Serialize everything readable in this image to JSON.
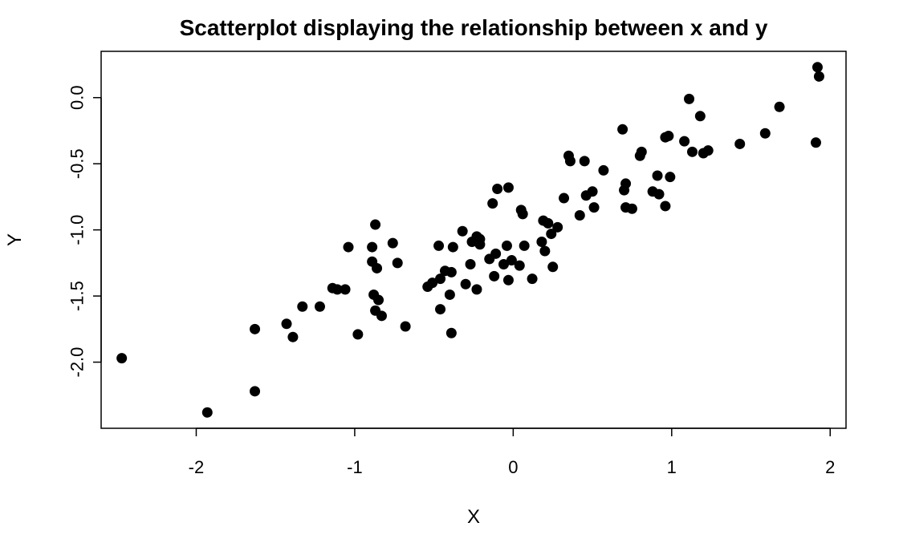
{
  "chart_data": {
    "type": "scatter",
    "title": "Scatterplot displaying the relationship between x and y",
    "xlabel": "X",
    "ylabel": "Y",
    "xlim": [
      -2.6,
      2.1
    ],
    "ylim": [
      -2.5,
      0.35
    ],
    "x_ticks": [
      -2,
      -1,
      0,
      1,
      2
    ],
    "x_tick_labels": [
      "-2",
      "-1",
      "0",
      "1",
      "2"
    ],
    "y_ticks": [
      -2.0,
      -1.5,
      -1.0,
      -0.5,
      0.0
    ],
    "y_tick_labels": [
      "-2.0",
      "-1.5",
      "-1.0",
      "-0.5",
      "0.0"
    ],
    "grid": false,
    "marker_color": "#000000",
    "points": [
      [
        -2.47,
        -1.97
      ],
      [
        -1.93,
        -2.38
      ],
      [
        -1.63,
        -2.22
      ],
      [
        -1.63,
        -1.75
      ],
      [
        -1.43,
        -1.71
      ],
      [
        -1.39,
        -1.81
      ],
      [
        -1.33,
        -1.58
      ],
      [
        -1.22,
        -1.58
      ],
      [
        -1.14,
        -1.44
      ],
      [
        -1.11,
        -1.45
      ],
      [
        -1.06,
        -1.45
      ],
      [
        -1.04,
        -1.13
      ],
      [
        -0.98,
        -1.79
      ],
      [
        -0.89,
        -1.13
      ],
      [
        -0.89,
        -1.24
      ],
      [
        -0.88,
        -1.49
      ],
      [
        -0.87,
        -0.96
      ],
      [
        -0.87,
        -1.61
      ],
      [
        -0.86,
        -1.29
      ],
      [
        -0.85,
        -1.53
      ],
      [
        -0.83,
        -1.65
      ],
      [
        -0.76,
        -1.1
      ],
      [
        -0.73,
        -1.25
      ],
      [
        -0.68,
        -1.73
      ],
      [
        -0.54,
        -1.43
      ],
      [
        -0.51,
        -1.4
      ],
      [
        -0.47,
        -1.12
      ],
      [
        -0.46,
        -1.37
      ],
      [
        -0.46,
        -1.6
      ],
      [
        -0.43,
        -1.31
      ],
      [
        -0.4,
        -1.49
      ],
      [
        -0.39,
        -1.32
      ],
      [
        -0.39,
        -1.78
      ],
      [
        -0.38,
        -1.13
      ],
      [
        -0.32,
        -1.01
      ],
      [
        -0.3,
        -1.41
      ],
      [
        -0.27,
        -1.26
      ],
      [
        -0.26,
        -1.09
      ],
      [
        -0.23,
        -1.05
      ],
      [
        -0.23,
        -1.45
      ],
      [
        -0.21,
        -1.07
      ],
      [
        -0.21,
        -1.11
      ],
      [
        -0.15,
        -1.22
      ],
      [
        -0.13,
        -0.8
      ],
      [
        -0.12,
        -1.35
      ],
      [
        -0.11,
        -1.18
      ],
      [
        -0.1,
        -0.69
      ],
      [
        -0.06,
        -1.26
      ],
      [
        -0.04,
        -1.12
      ],
      [
        -0.03,
        -0.68
      ],
      [
        -0.03,
        -1.38
      ],
      [
        -0.01,
        -1.23
      ],
      [
        0.04,
        -1.27
      ],
      [
        0.05,
        -0.85
      ],
      [
        0.06,
        -0.88
      ],
      [
        0.07,
        -1.12
      ],
      [
        0.12,
        -1.37
      ],
      [
        0.18,
        -1.09
      ],
      [
        0.19,
        -0.93
      ],
      [
        0.2,
        -1.16
      ],
      [
        0.22,
        -0.95
      ],
      [
        0.24,
        -1.03
      ],
      [
        0.25,
        -1.28
      ],
      [
        0.28,
        -0.98
      ],
      [
        0.32,
        -0.76
      ],
      [
        0.35,
        -0.44
      ],
      [
        0.36,
        -0.48
      ],
      [
        0.42,
        -0.89
      ],
      [
        0.45,
        -0.48
      ],
      [
        0.46,
        -0.74
      ],
      [
        0.5,
        -0.71
      ],
      [
        0.51,
        -0.83
      ],
      [
        0.57,
        -0.55
      ],
      [
        0.69,
        -0.24
      ],
      [
        0.7,
        -0.7
      ],
      [
        0.71,
        -0.65
      ],
      [
        0.71,
        -0.83
      ],
      [
        0.75,
        -0.84
      ],
      [
        0.8,
        -0.44
      ],
      [
        0.81,
        -0.41
      ],
      [
        0.88,
        -0.71
      ],
      [
        0.91,
        -0.59
      ],
      [
        0.92,
        -0.73
      ],
      [
        0.96,
        -0.82
      ],
      [
        0.96,
        -0.3
      ],
      [
        0.98,
        -0.29
      ],
      [
        0.99,
        -0.6
      ],
      [
        1.08,
        -0.33
      ],
      [
        1.11,
        -0.01
      ],
      [
        1.13,
        -0.41
      ],
      [
        1.18,
        -0.14
      ],
      [
        1.2,
        -0.42
      ],
      [
        1.23,
        -0.4
      ],
      [
        1.43,
        -0.35
      ],
      [
        1.59,
        -0.27
      ],
      [
        1.68,
        -0.07
      ],
      [
        1.91,
        -0.34
      ],
      [
        1.92,
        0.23
      ],
      [
        1.93,
        0.16
      ]
    ]
  }
}
